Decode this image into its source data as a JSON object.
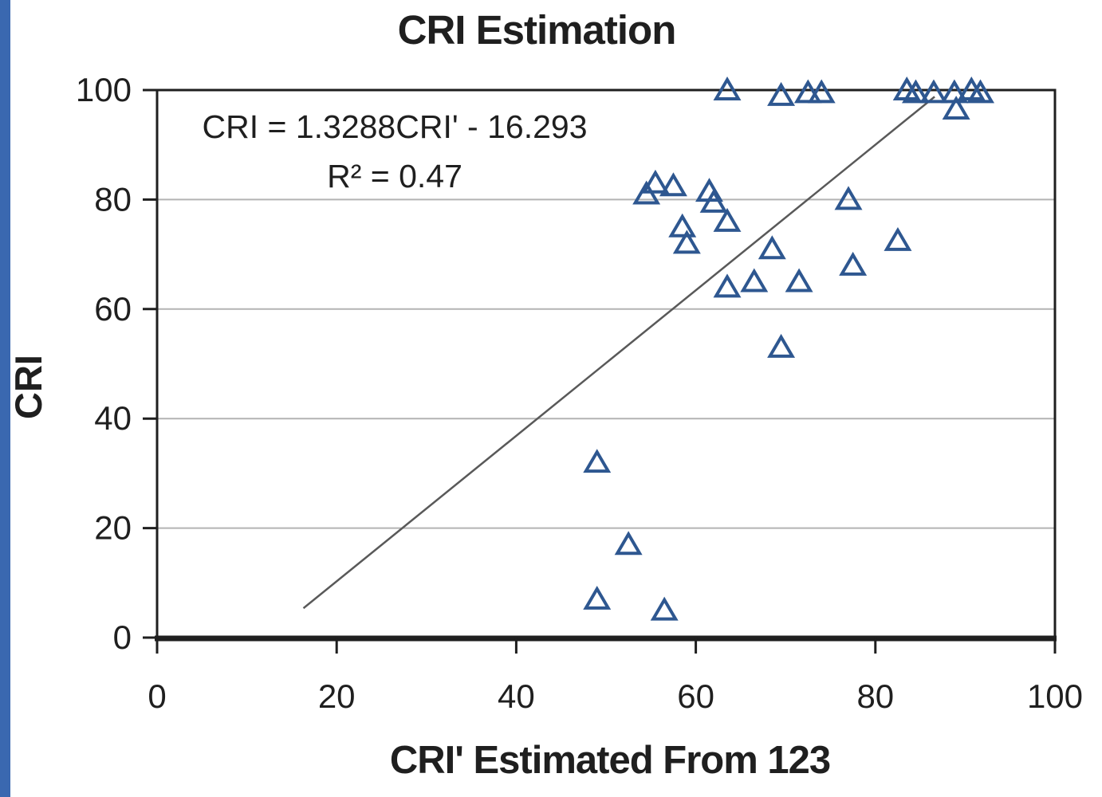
{
  "chart_data": {
    "type": "scatter",
    "title": "CRI Estimation",
    "xlabel": "CRI' Estimated From 123",
    "ylabel": "CRI",
    "annotation": {
      "equation": "CRI = 1.3288CRI' - 16.293",
      "r_squared": "R² = 0.47"
    },
    "xlim": [
      0,
      100
    ],
    "ylim": [
      0,
      100
    ],
    "xticks": [
      0,
      20,
      40,
      60,
      80,
      100
    ],
    "yticks": [
      0,
      20,
      40,
      60,
      80,
      100
    ],
    "xtick_labels": [
      "0",
      "20",
      "40",
      "60",
      "80",
      "100"
    ],
    "ytick_labels": [
      "0",
      "20",
      "40",
      "60",
      "80",
      "100"
    ],
    "grid": "horizontal",
    "legend": "none",
    "marker": "open-triangle",
    "points": [
      [
        49,
        7
      ],
      [
        49,
        32
      ],
      [
        52.5,
        17
      ],
      [
        56.5,
        5
      ],
      [
        54.5,
        81
      ],
      [
        55.5,
        83
      ],
      [
        57.5,
        82.5
      ],
      [
        58.5,
        75
      ],
      [
        59,
        72
      ],
      [
        61.5,
        81.5
      ],
      [
        62,
        79.5
      ],
      [
        63.5,
        76
      ],
      [
        68.5,
        71
      ],
      [
        63.5,
        64
      ],
      [
        66.5,
        65
      ],
      [
        71.5,
        65
      ],
      [
        69.5,
        53
      ],
      [
        77,
        80
      ],
      [
        77.5,
        68
      ],
      [
        82.5,
        72.5
      ],
      [
        63.5,
        100
      ],
      [
        69.5,
        99
      ],
      [
        72.5,
        99.5
      ],
      [
        74,
        99.5
      ],
      [
        83.5,
        100
      ],
      [
        84.5,
        99.5
      ],
      [
        86.5,
        99.5
      ],
      [
        88.8,
        99.5
      ],
      [
        90.7,
        100
      ],
      [
        91.7,
        99.5
      ],
      [
        89,
        96.5
      ]
    ],
    "trendline": {
      "slope": 1.3288,
      "intercept": -16.293,
      "r2": 0.47,
      "x_start": 16.3,
      "x_end": 86.6
    },
    "colors": {
      "marker": "#2e5790",
      "trendline": "#595959",
      "axis": "#1f1f1f",
      "gridline": "#b3b3b3",
      "text": "#1f1f1f",
      "left_strip": "#3a68b0"
    }
  }
}
